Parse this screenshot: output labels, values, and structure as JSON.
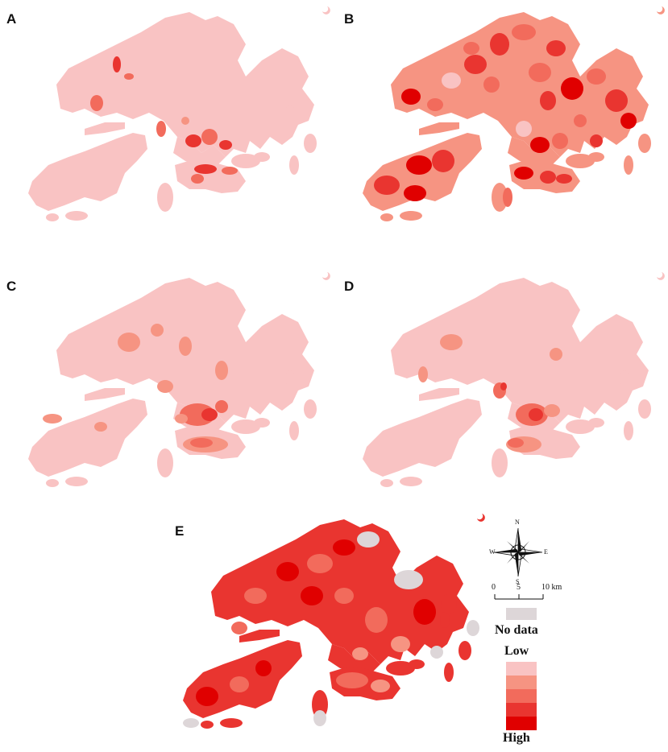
{
  "panels": [
    {
      "letter": "A",
      "variant": "sparse"
    },
    {
      "letter": "B",
      "variant": "patchy"
    },
    {
      "letter": "C",
      "variant": "smooth"
    },
    {
      "letter": "D",
      "variant": "smooth-core"
    },
    {
      "letter": "E",
      "variant": "dense"
    }
  ],
  "compass": {
    "n": "N",
    "s": "S",
    "e": "E",
    "w": "W"
  },
  "scale_bar": {
    "ticks": [
      "0",
      "5",
      "10 km"
    ]
  },
  "legend": {
    "no_data_label": "No data",
    "low_label": "Low",
    "high_label": "High",
    "no_data_color": "#ddd6d8",
    "classes": [
      "#f9c3c3",
      "#f69482",
      "#f26b5c",
      "#e93530",
      "#e00000"
    ]
  },
  "colors": {
    "base": "#f9c3c3",
    "c2": "#f69482",
    "c3": "#f26b5c",
    "c4": "#e93530",
    "c5": "#e00000",
    "nodata": "#ddd6d8"
  }
}
